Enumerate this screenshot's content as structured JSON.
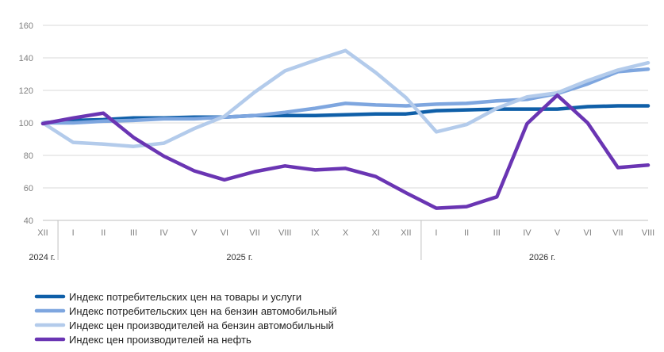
{
  "chart_data": {
    "type": "line",
    "categories": [
      "XII",
      "I",
      "II",
      "III",
      "IV",
      "V",
      "VI",
      "VII",
      "VIII",
      "IX",
      "X",
      "XI",
      "XII",
      "I",
      "II",
      "III",
      "IV",
      "V",
      "VI",
      "VII",
      "VIII"
    ],
    "year_labels": [
      {
        "label": "2024 г.",
        "from": 0,
        "to": 0
      },
      {
        "label": "2025 г.",
        "from": 1,
        "to": 12
      },
      {
        "label": "2026 г.",
        "from": 13,
        "to": 20
      }
    ],
    "ylim": [
      40,
      160
    ],
    "yticks": [
      40,
      60,
      80,
      100,
      120,
      140,
      160
    ],
    "grid": true,
    "legend_position": "bottom-left",
    "series": [
      {
        "name": "Индекс потребительских цен на товары и услуги",
        "color": "#0f5fa8",
        "values": [
          100,
          101.5,
          102,
          103,
          103,
          103.5,
          103.5,
          104.5,
          104.5,
          104.5,
          105,
          105.5,
          105.5,
          107.5,
          108,
          108.5,
          108.5,
          108.5,
          110,
          110.5,
          110.5
        ]
      },
      {
        "name": "Индекс потребительских цен на бензин автомобильный",
        "color": "#7ea6df",
        "values": [
          100,
          100,
          101,
          101.5,
          102.5,
          102.5,
          103.5,
          104.5,
          106.5,
          109,
          112,
          111,
          110.5,
          111.5,
          112,
          113.5,
          114.5,
          118,
          124,
          131.5,
          133
        ]
      },
      {
        "name": "Индекс цен производителей на бензин автомобильный",
        "color": "#b3cbeb",
        "values": [
          100,
          88,
          87,
          85.5,
          87.5,
          96.5,
          104,
          119,
          132,
          138.5,
          144.5,
          131,
          115.5,
          94.5,
          99,
          109,
          116,
          118.5,
          126,
          132.5,
          137
        ]
      },
      {
        "name": "Индекс цен производителей на нефть",
        "color": "#6a35b3",
        "values": [
          99.5,
          103,
          106,
          91,
          79.5,
          70.5,
          65,
          70,
          73.5,
          71,
          72,
          67,
          57,
          47.5,
          48.5,
          54.5,
          99.5,
          117,
          100,
          72.5,
          74
        ]
      }
    ]
  }
}
